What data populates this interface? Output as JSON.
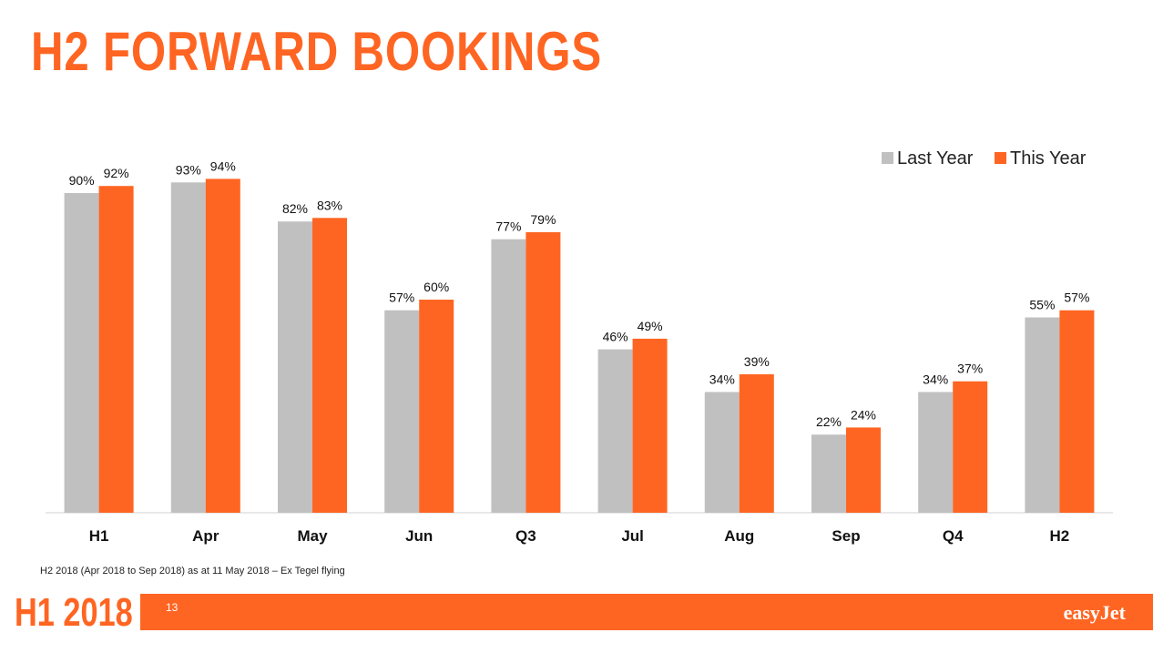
{
  "title": "H2 FORWARD BOOKINGS",
  "chart_data": {
    "type": "bar",
    "title": "",
    "xlabel": "",
    "ylabel": "",
    "ylim": [
      0,
      100
    ],
    "grid": false,
    "legend_position": "top-right",
    "categories": [
      "H1",
      "Apr",
      "May",
      "Jun",
      "Q3",
      "Jul",
      "Aug",
      "Sep",
      "Q4",
      "H2"
    ],
    "series": [
      {
        "name": "Last Year",
        "color": "#c0c0c0",
        "values": [
          90,
          93,
          82,
          57,
          77,
          46,
          34,
          22,
          34,
          55
        ],
        "labels": [
          "90%",
          "93%",
          "82%",
          "57%",
          "77%",
          "46%",
          "34%",
          "22%",
          "34%",
          "55%"
        ]
      },
      {
        "name": "This Year",
        "color": "#ff6522",
        "values": [
          92,
          94,
          83,
          60,
          79,
          49,
          39,
          24,
          37,
          57
        ],
        "labels": [
          "92%",
          "94%",
          "83%",
          "60%",
          "79%",
          "49%",
          "39%",
          "24%",
          "37%",
          "57%"
        ]
      }
    ]
  },
  "footnote": "H2 2018 (Apr 2018 to Sep 2018) as at 11 May 2018 – Ex Tegel flying",
  "footer": {
    "brand": "H1 2018",
    "page_number": "13",
    "logo": "easyJet",
    "accent_color": "#ff6522"
  }
}
